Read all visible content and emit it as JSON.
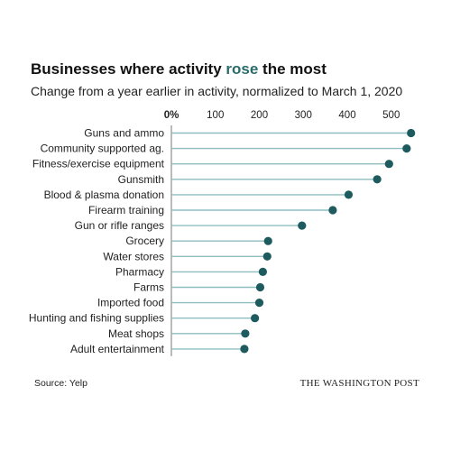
{
  "chart_data": {
    "type": "lollipop",
    "title_prefix": "Businesses where activity ",
    "title_highlight": "rose",
    "title_suffix": " the most",
    "subtitle": "Change from a year earlier in activity, normalized to March 1, 2020",
    "x_ticks": [
      "0%",
      "100",
      "200",
      "300",
      "400",
      "500"
    ],
    "xlim": [
      0,
      550
    ],
    "categories": [
      "Guns and ammo",
      "Community supported ag.",
      "Fitness/exercise equipment",
      "Gunsmith",
      "Blood & plasma donation",
      "Firearm training",
      "Gun or rifle ranges",
      "Grocery",
      "Water stores",
      "Pharmacy",
      "Farms",
      "Imported food",
      "Hunting and fishing supplies",
      "Meat shops",
      "Adult entertainment"
    ],
    "values": [
      545,
      535,
      495,
      468,
      403,
      367,
      297,
      220,
      218,
      208,
      202,
      200,
      190,
      168,
      166
    ],
    "colors": {
      "line": "#8fbdc0",
      "dot": "#1d5b5f",
      "accent": "#2a6b6b"
    },
    "grid": false
  },
  "footer": {
    "source": "Source: Yelp",
    "credit": "THE WASHINGTON POST"
  }
}
